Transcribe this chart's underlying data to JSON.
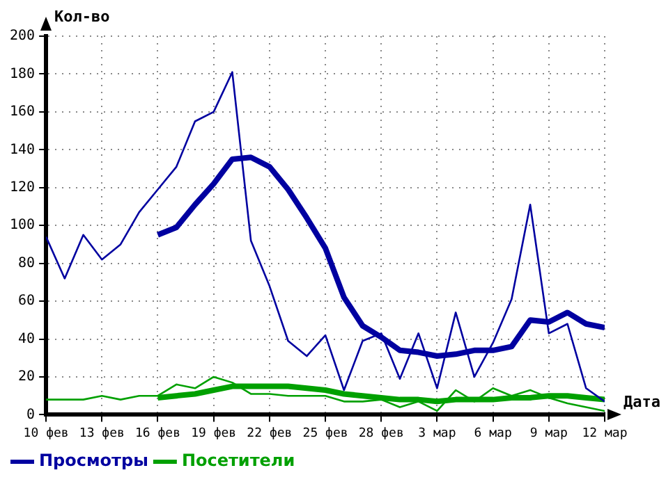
{
  "chart_data": {
    "type": "line",
    "xlabel": "Дата",
    "ylabel": "Кол-во",
    "x": [
      "--02-10",
      "--02-11",
      "--02-12",
      "--02-13",
      "--02-14",
      "--02-15",
      "--02-16",
      "--02-17",
      "--02-18",
      "--02-19",
      "--02-20",
      "--02-21",
      "--02-22",
      "--02-23",
      "--02-24",
      "--02-25",
      "--02-26",
      "--02-27",
      "--02-28",
      "--03-01",
      "--03-02",
      "--03-03",
      "--03-04",
      "--03-05",
      "--03-06",
      "--03-07",
      "--03-08",
      "--03-09",
      "--03-10",
      "--03-11",
      "--03-12"
    ],
    "series": [
      {
        "color": "#0000a0",
        "values": [
          94,
          72,
          95,
          82,
          90,
          107,
          119,
          131,
          155,
          160,
          181,
          92,
          68,
          39,
          31,
          42,
          13,
          39,
          43,
          19,
          43,
          14,
          54,
          20,
          38,
          61,
          111,
          43,
          48,
          14,
          7
        ]
      },
      {
        "color": "#00a000",
        "values": [
          8,
          8,
          8,
          10,
          8,
          10,
          10,
          16,
          14,
          20,
          17,
          11,
          11,
          10,
          10,
          10,
          7,
          7,
          8,
          4,
          7,
          2,
          13,
          7,
          14,
          10,
          13,
          9,
          6,
          4,
          2
        ]
      },
      {
        "name": "Просмотры",
        "color": "#0000a0",
        "values": [
          null,
          null,
          null,
          null,
          null,
          null,
          95,
          99,
          111,
          122,
          135,
          136,
          131,
          119,
          104,
          88,
          62,
          47,
          41,
          34,
          33,
          31,
          32,
          34,
          34,
          36,
          50,
          49,
          54,
          48,
          46
        ]
      },
      {
        "name": "Посетители",
        "color": "#00a000",
        "values": [
          null,
          null,
          null,
          null,
          null,
          null,
          9,
          10,
          11,
          13,
          15,
          15,
          15,
          15,
          14,
          13,
          11,
          10,
          9,
          8,
          8,
          7,
          8,
          8,
          8,
          9,
          9,
          10,
          10,
          9,
          8
        ]
      }
    ],
    "xlim": [
      "--02-10",
      "--03-12"
    ],
    "xticks": [
      {
        "value": "--02-10",
        "label": "10 фев"
      },
      {
        "value": "--02-13",
        "label": "13 фев"
      },
      {
        "value": "--02-16",
        "label": "16 фев"
      },
      {
        "value": "--02-19",
        "label": "19 фев"
      },
      {
        "value": "--02-22",
        "label": "22 фев"
      },
      {
        "value": "--02-25",
        "label": "25 фев"
      },
      {
        "value": "--02-28",
        "label": "28 фев"
      },
      {
        "value": "--03-03",
        "label": "3 мар"
      },
      {
        "value": "--03-06",
        "label": "6 мар"
      },
      {
        "value": "--03-09",
        "label": "9 мар"
      },
      {
        "value": "--03-12",
        "label": "12 мар"
      }
    ],
    "ylim": [
      0,
      200
    ],
    "yticks": [
      0,
      20,
      40,
      60,
      80,
      100,
      120,
      140,
      160,
      180,
      200
    ],
    "grid": true,
    "legend": "bottom left",
    "marker": "none",
    "line_style": "solid"
  }
}
